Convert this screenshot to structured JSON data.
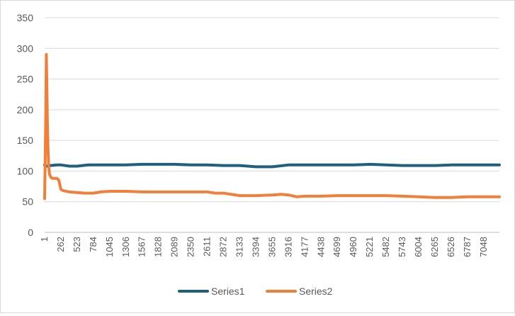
{
  "chart_data": {
    "type": "line",
    "title": "",
    "xlabel": "",
    "ylabel": "",
    "ylim": [
      0,
      350
    ],
    "yticks": [
      0,
      50,
      100,
      150,
      200,
      250,
      300,
      350
    ],
    "xlim": [
      1,
      7300
    ],
    "xticks": [
      1,
      262,
      523,
      784,
      1045,
      1306,
      1567,
      1828,
      2089,
      2350,
      2611,
      2872,
      3133,
      3394,
      3655,
      3916,
      4177,
      4438,
      4699,
      4960,
      5221,
      5482,
      5743,
      6004,
      6265,
      6526,
      6787,
      7048
    ],
    "grid": true,
    "legend_position": "bottom",
    "series": [
      {
        "name": "Series1",
        "color": "#1f5f7f",
        "points": [
          [
            1,
            110
          ],
          [
            30,
            108
          ],
          [
            100,
            109
          ],
          [
            200,
            110
          ],
          [
            262,
            110
          ],
          [
            400,
            108
          ],
          [
            523,
            108
          ],
          [
            700,
            110
          ],
          [
            784,
            110
          ],
          [
            1045,
            110
          ],
          [
            1306,
            110
          ],
          [
            1567,
            111
          ],
          [
            1828,
            111
          ],
          [
            2089,
            111
          ],
          [
            2350,
            110
          ],
          [
            2611,
            110
          ],
          [
            2872,
            109
          ],
          [
            3133,
            109
          ],
          [
            3394,
            107
          ],
          [
            3655,
            107
          ],
          [
            3916,
            110
          ],
          [
            4177,
            110
          ],
          [
            4438,
            110
          ],
          [
            4699,
            110
          ],
          [
            4960,
            110
          ],
          [
            5221,
            111
          ],
          [
            5482,
            110
          ],
          [
            5743,
            109
          ],
          [
            6004,
            109
          ],
          [
            6265,
            109
          ],
          [
            6526,
            110
          ],
          [
            6787,
            110
          ],
          [
            7048,
            110
          ],
          [
            7300,
            110
          ]
        ]
      },
      {
        "name": "Series2",
        "color": "#f07f3a",
        "points": [
          [
            1,
            55
          ],
          [
            10,
            120
          ],
          [
            20,
            200
          ],
          [
            28,
            290
          ],
          [
            35,
            250
          ],
          [
            45,
            180
          ],
          [
            55,
            140
          ],
          [
            65,
            110
          ],
          [
            80,
            95
          ],
          [
            100,
            90
          ],
          [
            130,
            88
          ],
          [
            200,
            88
          ],
          [
            230,
            85
          ],
          [
            262,
            70
          ],
          [
            300,
            68
          ],
          [
            400,
            66
          ],
          [
            523,
            65
          ],
          [
            650,
            64
          ],
          [
            784,
            64
          ],
          [
            900,
            66
          ],
          [
            1045,
            67
          ],
          [
            1306,
            67
          ],
          [
            1567,
            66
          ],
          [
            1828,
            66
          ],
          [
            2089,
            66
          ],
          [
            2350,
            66
          ],
          [
            2611,
            66
          ],
          [
            2740,
            64
          ],
          [
            2872,
            64
          ],
          [
            3000,
            62
          ],
          [
            3133,
            60
          ],
          [
            3394,
            60
          ],
          [
            3655,
            61
          ],
          [
            3800,
            62
          ],
          [
            3916,
            61
          ],
          [
            4050,
            58
          ],
          [
            4177,
            59
          ],
          [
            4438,
            59
          ],
          [
            4699,
            60
          ],
          [
            4960,
            60
          ],
          [
            5221,
            60
          ],
          [
            5482,
            60
          ],
          [
            5743,
            59
          ],
          [
            6004,
            58
          ],
          [
            6265,
            57
          ],
          [
            6526,
            57
          ],
          [
            6787,
            58
          ],
          [
            7048,
            58
          ],
          [
            7300,
            58
          ]
        ]
      }
    ]
  }
}
